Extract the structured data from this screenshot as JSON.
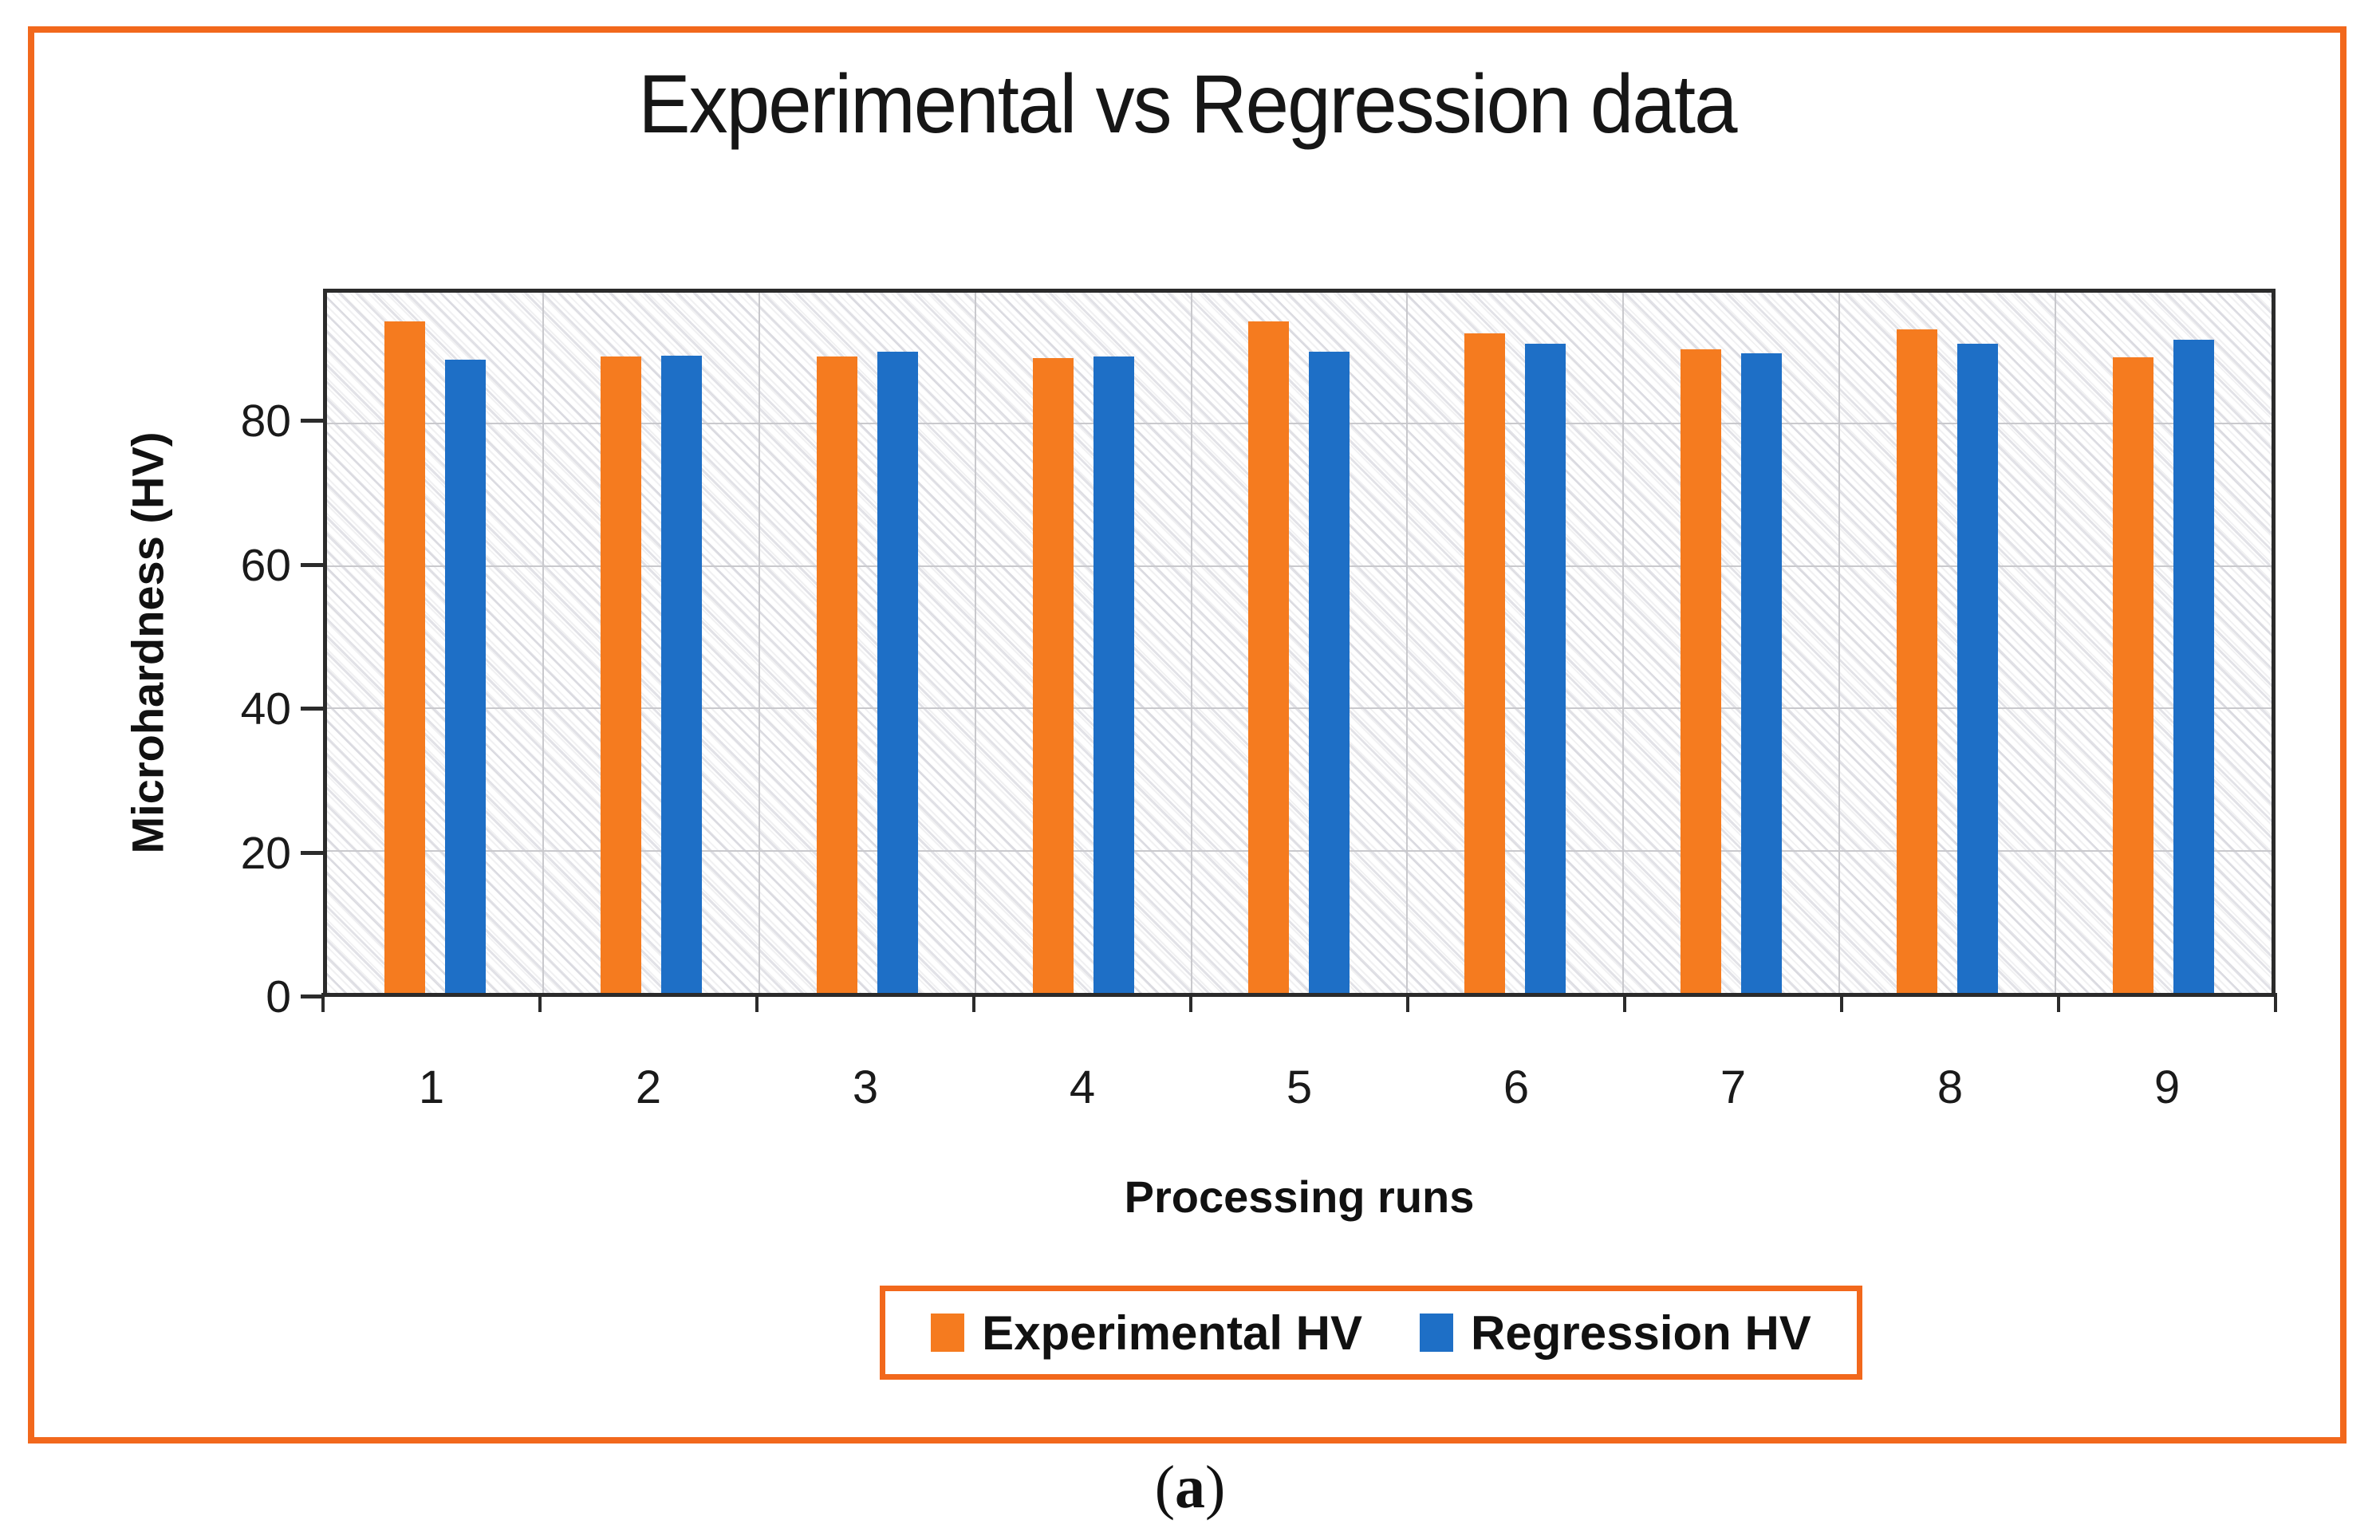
{
  "figure": {
    "border_color": "#F2681C",
    "caption": {
      "open": "(",
      "letter": "a",
      "close": ")"
    }
  },
  "chart_data": {
    "type": "bar",
    "title": "Experimental vs Regression data",
    "xlabel": "Processing runs",
    "ylabel": "Microhardness (HV)",
    "categories": [
      "1",
      "2",
      "3",
      "4",
      "5",
      "6",
      "7",
      "8",
      "9"
    ],
    "series": [
      {
        "name": "Experimental HV",
        "color": "#F57B1F",
        "values": [
          94.4,
          89.4,
          89.4,
          89.2,
          94.4,
          92.7,
          90.4,
          93.3,
          89.3
        ]
      },
      {
        "name": "Regression HV",
        "color": "#1E6FC6",
        "values": [
          89.0,
          89.5,
          90.1,
          89.4,
          90.1,
          91.2,
          89.9,
          91.2,
          91.8
        ]
      }
    ],
    "ylim": [
      0,
      98.4
    ],
    "yticks": [
      0,
      20,
      40,
      60,
      80
    ],
    "grid": true,
    "legend_position": "bottom",
    "plot_background": "diagonal-hatch"
  }
}
